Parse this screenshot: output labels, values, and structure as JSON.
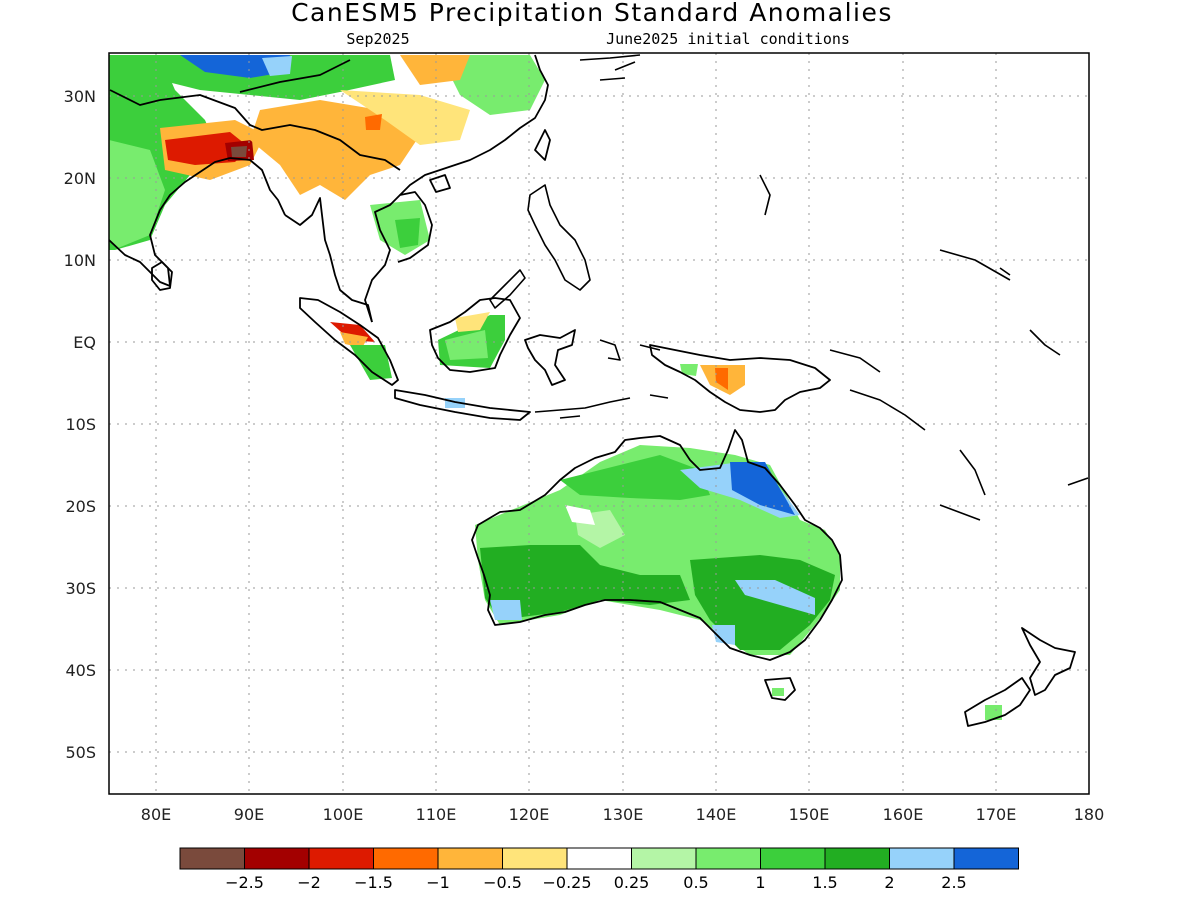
{
  "title": "CanESM5 Precipitation Standard Anomalies",
  "subtitle_left": "Sep2025",
  "subtitle_right": "June2025 initial conditions",
  "x_ticks": [
    "80E",
    "90E",
    "100E",
    "110E",
    "120E",
    "130E",
    "140E",
    "150E",
    "160E",
    "170E",
    "180"
  ],
  "y_ticks": [
    "30N",
    "20N",
    "10N",
    "EQ",
    "10S",
    "20S",
    "30S",
    "40S",
    "50S"
  ],
  "colorbar": {
    "colors": [
      "#7a4a3c",
      "#a30000",
      "#dd1a00",
      "#ff6a00",
      "#ffb53a",
      "#ffe47a",
      "#ffffff",
      "#b4f5a6",
      "#78ec6e",
      "#3ccf3c",
      "#22ae22",
      "#96d2fa",
      "#1465d8"
    ],
    "labels": [
      "−2.5",
      "−2",
      "−1.5",
      "−1",
      "−0.5",
      "−0.25",
      "0.25",
      "0.5",
      "1",
      "1.5",
      "2",
      "2.5"
    ]
  }
}
